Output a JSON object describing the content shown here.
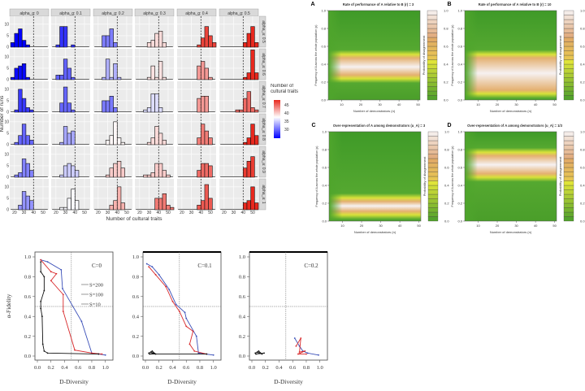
{
  "chart_data": [
    {
      "type": "bar",
      "subtype": "faceted-histogram",
      "xlabel": "Number of cultural traits",
      "ylabel": "Number of runs",
      "x_ticks": [
        "20",
        "30",
        "40",
        "50"
      ],
      "y_ticks": [
        "0",
        "5",
        "10"
      ],
      "xlim": [
        15,
        56
      ],
      "ylim": [
        0,
        13.5
      ],
      "reference_line_x": 40,
      "bin_centers": [
        18,
        22,
        26,
        30,
        34,
        38,
        42,
        46,
        50,
        54
      ],
      "col_labels": [
        "alpha_g: 0",
        "alpha_g: 0.1",
        "alpha_g: 0.2",
        "alpha_g: 0.3",
        "alpha_g: 0.4",
        "alpha_g: 0.5"
      ],
      "row_labels": [
        "alpha_a: 0.5",
        "alpha_a: 0.6",
        "alpha_a: 0.7",
        "alpha_a: 0.8",
        "alpha_a: 0.9",
        "alpha_a: 1"
      ],
      "counts": [
        [
          [
            2,
            6,
            8,
            3,
            1,
            0,
            0,
            0,
            0,
            0
          ],
          [
            0,
            1,
            9,
            9,
            0,
            1,
            0,
            0,
            0,
            0
          ],
          [
            0,
            0,
            5,
            5,
            8,
            2,
            0,
            0,
            0,
            0
          ],
          [
            0,
            0,
            0,
            2,
            3,
            6,
            7,
            2,
            0,
            0
          ],
          [
            0,
            0,
            0,
            0,
            0,
            1,
            4,
            9,
            5,
            2
          ],
          [
            0,
            0,
            0,
            0,
            0,
            0,
            2,
            6,
            9,
            2
          ]
        ],
        [
          [
            1,
            5,
            6,
            7,
            1,
            0,
            0,
            0,
            0,
            0
          ],
          [
            0,
            2,
            2,
            9,
            5,
            1,
            0,
            0,
            0,
            0
          ],
          [
            0,
            0,
            1,
            9,
            1,
            7,
            1,
            0,
            0,
            0
          ],
          [
            0,
            0,
            0,
            1,
            6,
            1,
            8,
            1,
            0,
            0
          ],
          [
            0,
            0,
            0,
            0,
            0,
            6,
            8,
            5,
            1,
            0
          ],
          [
            0,
            0,
            0,
            0,
            0,
            0,
            1,
            3,
            13,
            3
          ]
        ],
        [
          [
            0,
            1,
            10,
            6,
            2,
            1,
            0,
            0,
            0,
            0
          ],
          [
            0,
            0,
            4,
            11,
            4,
            1,
            0,
            0,
            0,
            0
          ],
          [
            0,
            0,
            5,
            5,
            7,
            2,
            0,
            0,
            0,
            0
          ],
          [
            0,
            0,
            1,
            2,
            8,
            8,
            2,
            0,
            0,
            0
          ],
          [
            0,
            0,
            0,
            0,
            0,
            6,
            7,
            7,
            0,
            0
          ],
          [
            0,
            0,
            0,
            0,
            1,
            1,
            6,
            9,
            2,
            1
          ]
        ],
        [
          [
            0,
            1,
            4,
            9,
            4,
            2,
            0,
            0,
            0,
            0
          ],
          [
            0,
            0,
            1,
            8,
            5,
            6,
            0,
            0,
            0,
            0
          ],
          [
            0,
            0,
            0,
            2,
            4,
            10,
            3,
            1,
            0,
            0
          ],
          [
            0,
            0,
            0,
            1,
            3,
            8,
            5,
            2,
            0,
            0
          ],
          [
            0,
            0,
            0,
            0,
            0,
            3,
            9,
            6,
            3,
            0
          ],
          [
            0,
            0,
            0,
            0,
            0,
            0,
            1,
            3,
            9,
            4
          ]
        ],
        [
          [
            0,
            1,
            2,
            8,
            6,
            3,
            0,
            0,
            0,
            0
          ],
          [
            0,
            0,
            1,
            5,
            6,
            5,
            3,
            0,
            0,
            0
          ],
          [
            0,
            0,
            0,
            1,
            4,
            6,
            7,
            4,
            0,
            0
          ],
          [
            0,
            0,
            1,
            1,
            2,
            6,
            6,
            3,
            1,
            0
          ],
          [
            0,
            0,
            0,
            0,
            0,
            3,
            6,
            6,
            5,
            0
          ],
          [
            0,
            0,
            0,
            0,
            0,
            0,
            4,
            7,
            9,
            0
          ]
        ],
        [
          [
            0,
            0,
            2,
            8,
            6,
            4,
            0,
            0,
            0,
            0
          ],
          [
            0,
            0,
            1,
            1,
            5,
            9,
            4,
            0,
            0,
            0
          ],
          [
            0,
            0,
            0,
            0,
            2,
            4,
            10,
            3,
            0,
            0
          ],
          [
            0,
            0,
            0,
            0,
            0,
            5,
            5,
            7,
            2,
            1
          ],
          [
            0,
            0,
            0,
            0,
            0,
            2,
            4,
            11,
            5,
            0
          ],
          [
            0,
            0,
            0,
            0,
            0,
            0,
            3,
            4,
            10,
            3
          ]
        ]
      ],
      "legend": {
        "title": "Number of cultural traits",
        "labels": [
          "45",
          "40",
          "35",
          "30"
        ],
        "colors": {
          "low": "#0000ff",
          "mid": "#ffffff",
          "high": "#e8281e"
        }
      }
    },
    {
      "type": "heatmap",
      "xlabel": "Number of demonstrators (n)",
      "ylabel": "Frequency of A across the whole population (p)",
      "x_ticks": [
        "10",
        "20",
        "30",
        "40",
        "50"
      ],
      "y_ticks": [
        "0.0",
        "0.2",
        "0.4",
        "0.6",
        "0.8",
        "1.0"
      ],
      "xlim": [
        3,
        51
      ],
      "ylim": [
        0,
        1
      ],
      "colorbar": {
        "label": "Probability of disagreement",
        "ticks": [
          "0.0",
          "0.2",
          "0.4",
          "0.6",
          "0.8",
          "1.0"
        ],
        "colors": {
          "low": "#4fa52c",
          "mid": "#e8e83a",
          "orange": "#e0a868",
          "high": "#f4f0f0"
        }
      },
      "panels": [
        {
          "letter": "A",
          "title": "Rate of performance of A relative to B (r) = 3",
          "high_disagreement_band": [
            0.25,
            0.5
          ],
          "peak": 0.37
        },
        {
          "letter": "B",
          "title": "Rate of performance of A relative to B (r) = 10",
          "high_disagreement_band": [
            0.08,
            0.5
          ],
          "peak": 0.3
        },
        {
          "letter": "C",
          "title": "Over-representation of A among demonstrators (u_A) = 3",
          "high_disagreement_band": [
            0.08,
            0.25
          ],
          "peak": 0.17
        },
        {
          "letter": "D",
          "title": "Over-representation of A among demonstrators (u_A) = 1/3",
          "high_disagreement_band": [
            0.5,
            0.76
          ],
          "peak": 0.63
        }
      ]
    },
    {
      "type": "line",
      "subtype": "trajectory",
      "xlabel": "D-Diversity",
      "ylabel": "α-Fidelity",
      "x_ticks": [
        "0.0",
        "0.2",
        "0.4",
        "0.6",
        "0.8",
        "1.0"
      ],
      "y_ticks": [
        "0.0",
        "0.2",
        "0.4",
        "0.6",
        "0.8",
        "1.0"
      ],
      "xlim": [
        0,
        1
      ],
      "ylim": [
        0,
        1
      ],
      "reference_lines": {
        "x": 0.5,
        "y": 0.5
      },
      "legend": [
        "S=200",
        "S=100",
        "S=10"
      ],
      "series_colors": {
        "S=200": "#3a4fb8",
        "S=100": "#d8282a",
        "S=10": "#111111"
      },
      "panels": [
        {
          "label": "C=0",
          "series": [
            {
              "name": "S=200",
              "x": [
                0.05,
                0.15,
                0.35,
                0.37,
                0.65,
                0.8,
                0.9,
                1.0
              ],
              "y": [
                0.97,
                0.95,
                0.87,
                0.68,
                0.35,
                0.03,
                0.02,
                0.01
              ]
            },
            {
              "name": "S=100",
              "x": [
                0.05,
                0.2,
                0.28,
                0.2,
                0.38,
                0.38,
                0.55,
                0.8,
                0.95
              ],
              "y": [
                0.97,
                0.85,
                0.83,
                0.76,
                0.62,
                0.45,
                0.06,
                0.03,
                0.02
              ]
            },
            {
              "name": "S=10",
              "x": [
                0.05,
                0.05,
                0.1,
                0.1,
                0.05,
                0.05,
                0.07,
                0.08,
                0.1,
                0.15,
                0.9
              ],
              "y": [
                0.95,
                0.85,
                0.8,
                0.66,
                0.55,
                0.48,
                0.4,
                0.12,
                0.05,
                0.03,
                0.02
              ]
            }
          ]
        },
        {
          "label": "C=0.1",
          "series": [
            {
              "name": "S=200",
              "x": [
                0.02,
                0.1,
                0.2,
                0.35,
                0.45,
                0.58,
                0.6,
                0.75,
                0.78,
                1.0
              ],
              "y": [
                0.93,
                0.9,
                0.82,
                0.67,
                0.52,
                0.44,
                0.38,
                0.2,
                0.03,
                0.01
              ]
            },
            {
              "name": "S=100",
              "x": [
                0.05,
                0.15,
                0.3,
                0.4,
                0.5,
                0.6,
                0.7,
                0.65,
                0.72,
                0.9
              ],
              "y": [
                0.9,
                0.82,
                0.7,
                0.55,
                0.45,
                0.3,
                0.25,
                0.12,
                0.05,
                0.02
              ]
            },
            {
              "name": "S=10",
              "x": [
                0.05,
                0.1,
                0.15,
                0.08,
                0.12,
                0.06,
                0.9
              ],
              "y": [
                0.03,
                0.05,
                0.02,
                0.04,
                0.03,
                0.02,
                0.02
              ]
            }
          ]
        },
        {
          "label": "C=0.2",
          "series": [
            {
              "name": "S=200",
              "x": [
                0.63,
                0.7,
                0.75,
                0.82,
                0.98
              ],
              "y": [
                0.18,
                0.1,
                0.05,
                0.03,
                0.01
              ]
            },
            {
              "name": "S=100",
              "x": [
                0.65,
                0.72,
                0.7,
                0.78,
                0.68,
                0.8
              ],
              "y": [
                0.1,
                0.18,
                0.04,
                0.05,
                0.02,
                0.02
              ]
            },
            {
              "name": "S=10",
              "x": [
                0.05,
                0.1,
                0.15,
                0.08,
                0.12,
                0.06,
                0.18
              ],
              "y": [
                0.03,
                0.05,
                0.02,
                0.04,
                0.03,
                0.02,
                0.03
              ]
            }
          ]
        }
      ]
    }
  ]
}
